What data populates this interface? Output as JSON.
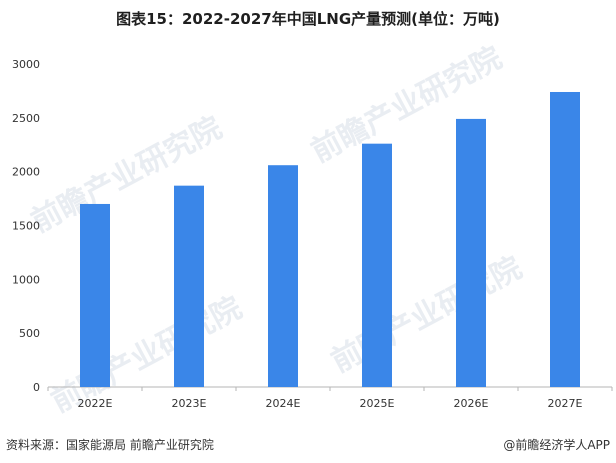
{
  "title": "图表15：2022-2027年中国LNG产量预测(单位：万吨)",
  "source": "资料来源：国家能源局 前瞻产业研究院",
  "brand": "@前瞻经济学人APP",
  "watermark": "前瞻产业研究院",
  "colors": {
    "bar": "#3a86e8",
    "axis": "#b5b5b5",
    "text": "#333333"
  },
  "chart_data": {
    "type": "bar",
    "title": "图表15：2022-2027年中国LNG产量预测(单位：万吨)",
    "categories": [
      "2022E",
      "2023E",
      "2024E",
      "2025E",
      "2026E",
      "2027E"
    ],
    "values": [
      1700,
      1870,
      2060,
      2260,
      2490,
      2740
    ],
    "ylim": [
      0,
      3000
    ],
    "yticks": [
      0,
      500,
      1000,
      1500,
      2000,
      2500,
      3000
    ],
    "grid": false,
    "xlabel": "",
    "ylabel": ""
  }
}
